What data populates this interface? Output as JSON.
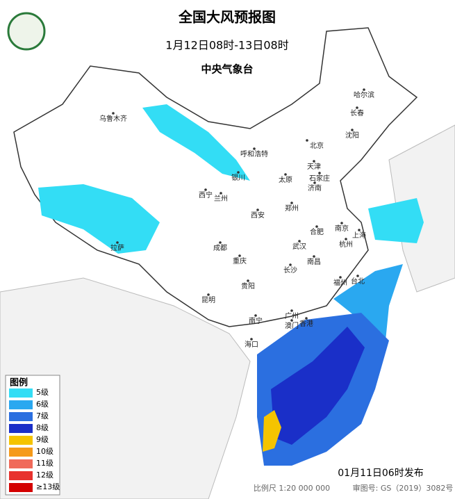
{
  "header": {
    "title": "全国大风预报图",
    "period": "1月12日08时-13日08时",
    "issuer": "中央气象台"
  },
  "cities": [
    "乌鲁木齐",
    "呼和浩特",
    "北京",
    "天津",
    "沈阳",
    "长春",
    "哈尔滨",
    "银川",
    "太原",
    "石家庄",
    "济南",
    "西宁",
    "兰州",
    "西安",
    "郑州",
    "合肥",
    "南京",
    "上海",
    "杭州",
    "拉萨",
    "成都",
    "重庆",
    "武汉",
    "长沙",
    "南昌",
    "福州",
    "台北",
    "贵阳",
    "昆明",
    "南宁",
    "广州",
    "澳门",
    "香港",
    "海口"
  ],
  "legend": {
    "title": "图例",
    "items": [
      {
        "label": "5级",
        "color": "#33ddf5"
      },
      {
        "label": "6级",
        "color": "#2aa8f0"
      },
      {
        "label": "7级",
        "color": "#2b6fe0"
      },
      {
        "label": "8级",
        "color": "#1a2fc8"
      },
      {
        "label": "9级",
        "color": "#f5c400"
      },
      {
        "label": "10级",
        "color": "#f59a1a"
      },
      {
        "label": "11级",
        "color": "#f06a5a"
      },
      {
        "label": "12级",
        "color": "#e8322e"
      },
      {
        "label": "≥13级",
        "color": "#d40000"
      }
    ]
  },
  "footer": {
    "published": "01月11日06时发布",
    "scale": "比例尺 1:20 000 000",
    "review": "审图号: GS（2019）3082号"
  }
}
